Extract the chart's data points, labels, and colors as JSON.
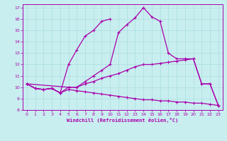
{
  "xlabel": "Windchill (Refroidissement éolien,°C)",
  "bg_color": "#c8eef0",
  "line_color": "#aa00aa",
  "grid_color": "#aadddd",
  "xlim": [
    -0.5,
    23.5
  ],
  "ylim": [
    8,
    17.3
  ],
  "xticks": [
    0,
    1,
    2,
    3,
    4,
    5,
    6,
    7,
    8,
    9,
    10,
    11,
    12,
    13,
    14,
    15,
    16,
    17,
    18,
    19,
    20,
    21,
    22,
    23
  ],
  "yticks": [
    8,
    9,
    10,
    11,
    12,
    13,
    14,
    15,
    16,
    17
  ],
  "line1_x": [
    0,
    1,
    2,
    3,
    4,
    5,
    6,
    7,
    8,
    9,
    10
  ],
  "line1_y": [
    10.3,
    9.9,
    9.8,
    9.9,
    9.5,
    12.0,
    13.3,
    14.5,
    15.0,
    15.8,
    16.0
  ],
  "line2_x": [
    0,
    5,
    6,
    7,
    8,
    9,
    10,
    11,
    12,
    13,
    14,
    15,
    16,
    17,
    18,
    19,
    20,
    21,
    22,
    23
  ],
  "line2_y": [
    10.3,
    10.0,
    10.0,
    10.5,
    11.0,
    11.5,
    12.0,
    14.8,
    15.5,
    16.1,
    17.0,
    16.2,
    15.8,
    13.0,
    12.5,
    12.5,
    12.5,
    10.3,
    10.3,
    8.4
  ],
  "line3_x": [
    0,
    1,
    2,
    3,
    4,
    5,
    6,
    7,
    8,
    9,
    10,
    11,
    12,
    13,
    14,
    15,
    16,
    17,
    18,
    19,
    20,
    21,
    22,
    23
  ],
  "line3_y": [
    10.3,
    9.9,
    9.8,
    9.9,
    9.5,
    10.0,
    10.0,
    10.3,
    10.5,
    10.8,
    11.0,
    11.2,
    11.5,
    11.8,
    12.0,
    12.0,
    12.1,
    12.2,
    12.3,
    12.4,
    12.5,
    10.3,
    10.3,
    8.4
  ],
  "line4_x": [
    0,
    1,
    2,
    3,
    4,
    5,
    6,
    7,
    8,
    9,
    10,
    11,
    12,
    13,
    14,
    15,
    16,
    17,
    18,
    19,
    20,
    21,
    22,
    23
  ],
  "line4_y": [
    10.3,
    9.9,
    9.8,
    9.9,
    9.5,
    9.8,
    9.7,
    9.6,
    9.5,
    9.4,
    9.3,
    9.2,
    9.1,
    9.0,
    8.9,
    8.9,
    8.8,
    8.8,
    8.7,
    8.7,
    8.6,
    8.6,
    8.5,
    8.4
  ]
}
